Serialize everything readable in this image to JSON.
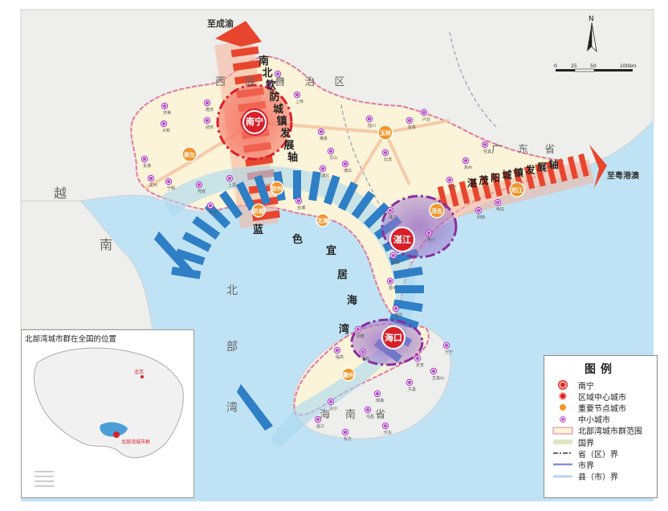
{
  "map": {
    "directions": {
      "north": "至成渝",
      "east": "至粤港澳"
    },
    "axes": {
      "nanbei": "南北钦防城镇发展轴",
      "zhanmao": "湛茂阳城镇发展轴",
      "blue": "蓝色宜居海湾"
    },
    "region_labels": {
      "guangxi": "西 族 自 治 区",
      "guangdong": "广 东 省",
      "hainan": "南 省",
      "hai": "海",
      "vietnam_1": "越",
      "vietnam_2": "南",
      "gulf_1": "北",
      "gulf_2": "部",
      "gulf_3": "湾"
    },
    "cities": {
      "nanning": "南宁",
      "zhanjiang": "湛江",
      "haikou": "海口",
      "chongzuo": "崇左",
      "qinzhou": "钦州",
      "fangchenggang": "防城",
      "beihai": "北海",
      "yulin": "玉林",
      "maoming": "茂名",
      "yangjiang": "阳江",
      "danzhou": "儋州"
    },
    "small_towns": [
      "天等",
      "大新",
      "隆安",
      "武鸣",
      "宾阳",
      "上林",
      "马山",
      "横县",
      "灵山",
      "浦北",
      "博白",
      "陆川",
      "北流",
      "容县",
      "兴业",
      "贵港",
      "龙州",
      "宁明",
      "凭祥",
      "上思",
      "东兴",
      "合浦",
      "廉江",
      "遂溪",
      "雷州",
      "徐闻",
      "吴川",
      "化州",
      "高州",
      "信宜",
      "电白",
      "阳西",
      "阳春",
      "临高",
      "澄迈",
      "定安",
      "文昌",
      "琼海",
      "屯昌",
      "白沙",
      "昌江",
      "东方",
      "乐东",
      "五指山",
      "万宁"
    ],
    "scale": {
      "ticks": [
        "0",
        "25",
        "50",
        "100km"
      ],
      "north_label": "N"
    }
  },
  "inset": {
    "title": "北部湾城市群在全国的位置",
    "capital_label": "北京",
    "region_label": "北部湾城市群"
  },
  "legend": {
    "title": "图例",
    "items": [
      {
        "label": "南宁",
        "symbol": "capital"
      },
      {
        "label": "区域中心城市",
        "symbol": "regional"
      },
      {
        "label": "重要节点城市",
        "symbol": "node"
      },
      {
        "label": "中小城市",
        "symbol": "small"
      },
      {
        "label": "北部湾城市群范围",
        "symbol": "range"
      },
      {
        "label": "国界",
        "symbol": "national"
      },
      {
        "label": "省（区）界",
        "symbol": "provincial"
      },
      {
        "label": "市界",
        "symbol": "municipal"
      },
      {
        "label": "县（市）界",
        "symbol": "county"
      }
    ]
  },
  "colors": {
    "sea": "#bfe3f4",
    "land": "#eeeeec",
    "region": "#fbf4d8",
    "axis_red": "#e8452f",
    "axis_blue": "#2f7fc6",
    "node_orange": "#f2962a",
    "small_purple": "#b148c6",
    "ring_purple": "#8a2fa0"
  }
}
